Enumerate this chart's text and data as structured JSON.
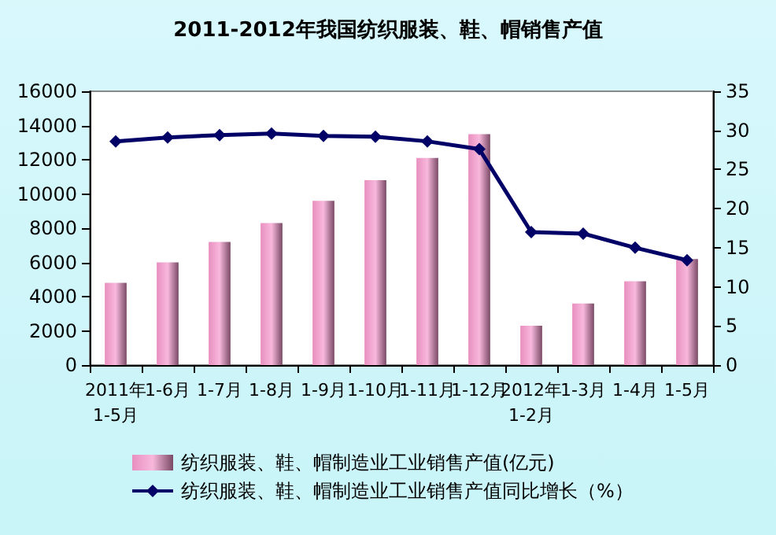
{
  "chart_data": {
    "type": "bar",
    "title": "2011-2012年我国纺织服装、鞋、帽销售产值",
    "categories": [
      "2011年1-5月",
      "1-6月",
      "1-7月",
      "1-8月",
      "1-9月",
      "1-10月",
      "1-11月",
      "1-12月",
      "2012年1-2月",
      "1-3月",
      "1-4月",
      "1-5月"
    ],
    "series": [
      {
        "name": "纺织服装、鞋、帽制造业工业销售产值(亿元)",
        "color": "#e88fc0",
        "values": [
          4800,
          6000,
          7200,
          8300,
          9600,
          10800,
          12100,
          13500,
          2300,
          3600,
          4900,
          6200
        ]
      },
      {
        "name": "纺织服装、鞋、帽制造业工业销售产值同比增长（%）",
        "type": "line",
        "axis": "y2",
        "color": "#000066",
        "values": [
          28.6,
          29.1,
          29.4,
          29.6,
          29.3,
          29.2,
          28.6,
          27.6,
          17.0,
          16.8,
          15.0,
          13.4
        ]
      }
    ],
    "ylim": [
      0,
      16000
    ],
    "yticks": [
      0,
      2000,
      4000,
      6000,
      8000,
      10000,
      12000,
      14000,
      16000
    ],
    "y2lim": [
      0,
      35
    ],
    "y2ticks": [
      0,
      5,
      10,
      15,
      20,
      25,
      30,
      35
    ],
    "grid": false,
    "legend": "bottom",
    "marker": "diamond",
    "line_style": "solid"
  }
}
